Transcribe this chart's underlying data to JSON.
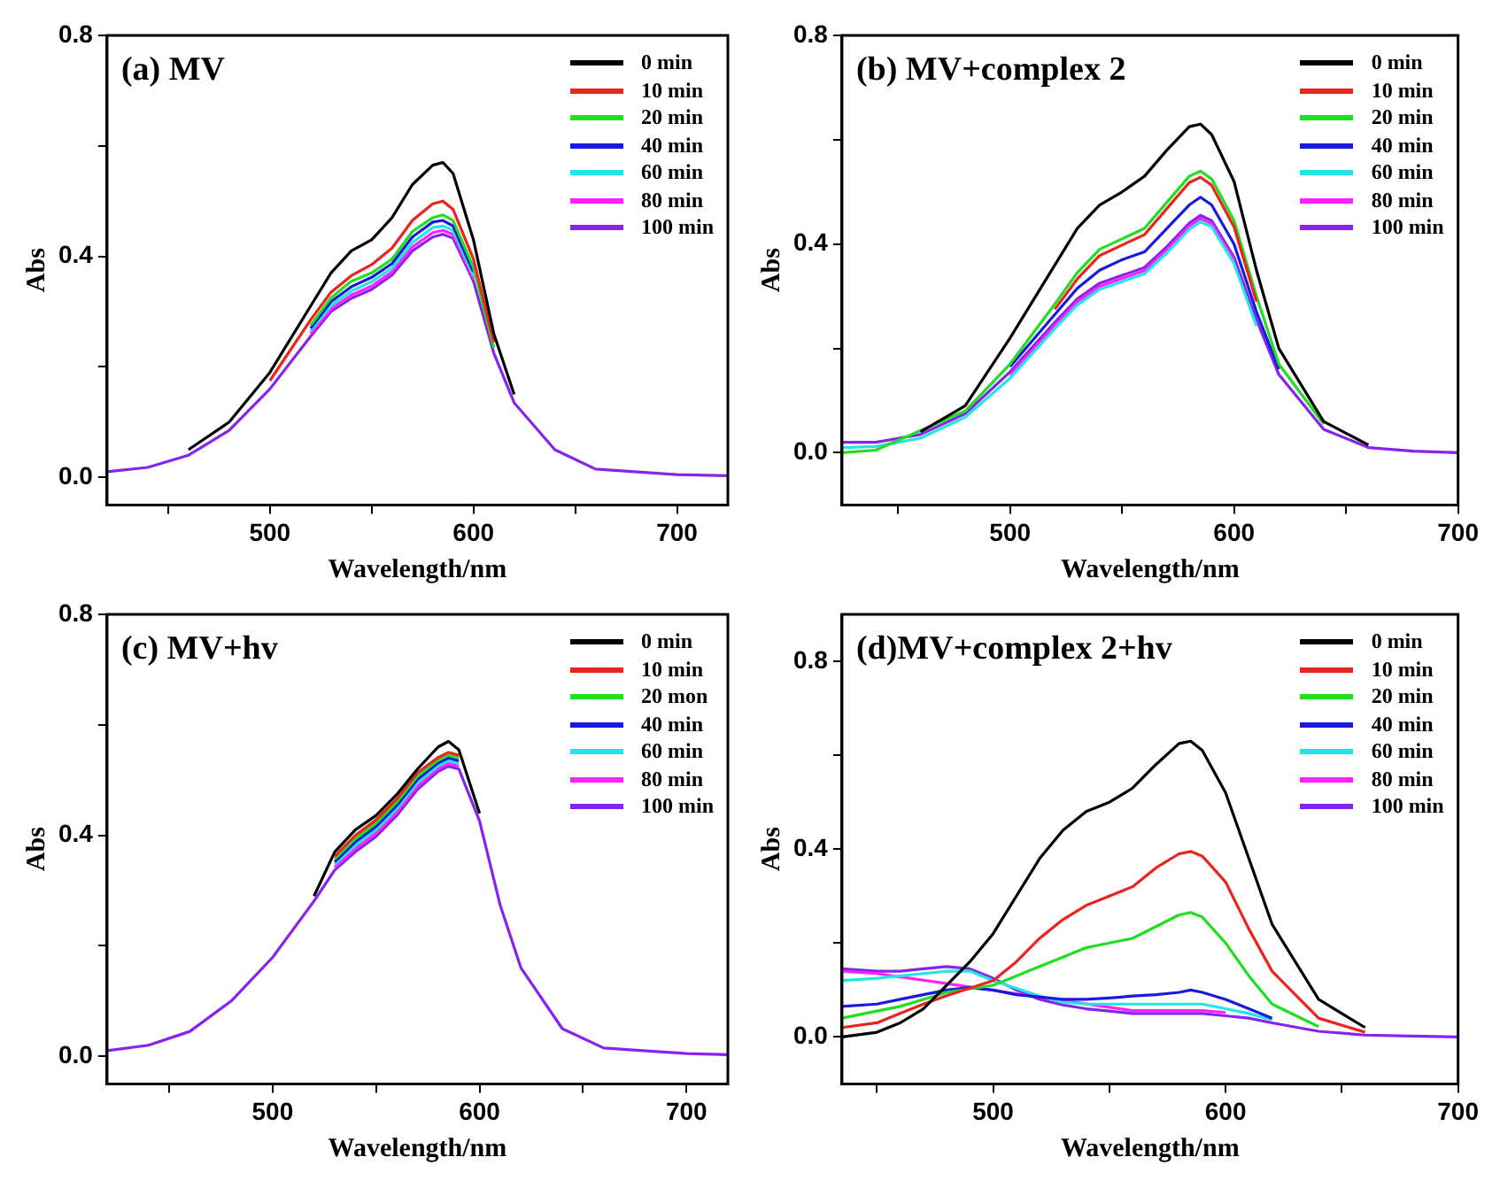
{
  "chart_data": [
    {
      "type": "line",
      "title": "(a) MV",
      "xlabel": "Wavelength/nm",
      "ylabel": "Abs",
      "legend": "top right",
      "xlim": [
        420,
        725
      ],
      "ylim": [
        -0.05,
        0.8
      ],
      "xticks": [
        {
          "value": 450,
          "label": null
        },
        500,
        {
          "value": 550,
          "label": null
        },
        600,
        {
          "value": 650,
          "label": null
        },
        700
      ],
      "yticks": [
        {
          "value": 0,
          "label": "0.0"
        },
        {
          "value": 0.2,
          "label": null
        },
        {
          "value": 0.4,
          "label": "0.4"
        },
        {
          "value": 0.6,
          "label": null
        },
        {
          "value": 0.8,
          "label": "0.8"
        }
      ],
      "x": [
        420,
        440,
        460,
        480,
        500,
        520,
        530,
        540,
        550,
        560,
        570,
        580,
        585,
        590,
        600,
        610,
        620,
        640,
        660,
        700,
        725
      ],
      "series": [
        {
          "name": "0 min",
          "color": "#000000",
          "values": [
            null,
            null,
            0.05,
            0.1,
            0.19,
            0.31,
            0.37,
            0.41,
            0.43,
            0.47,
            0.53,
            0.565,
            0.57,
            0.55,
            0.43,
            0.26,
            0.15,
            null,
            null,
            null,
            null
          ]
        },
        {
          "name": "10 min",
          "color": "#e8251f",
          "values": [
            null,
            null,
            null,
            null,
            0.175,
            0.285,
            0.335,
            0.365,
            0.385,
            0.415,
            0.465,
            0.495,
            0.5,
            0.485,
            0.395,
            0.245,
            null,
            null,
            null,
            null,
            null
          ]
        },
        {
          "name": "20 min",
          "color": "#22dd22",
          "values": [
            null,
            null,
            null,
            null,
            null,
            0.275,
            0.325,
            0.355,
            0.37,
            0.395,
            0.445,
            0.47,
            0.475,
            0.465,
            0.38,
            0.235,
            null,
            null,
            null,
            null,
            null
          ]
        },
        {
          "name": "40 min",
          "color": "#1a1adf",
          "values": [
            null,
            null,
            null,
            null,
            null,
            0.27,
            0.318,
            0.345,
            0.362,
            0.387,
            0.435,
            0.462,
            0.465,
            0.455,
            0.372,
            null,
            null,
            null,
            null,
            null,
            null
          ]
        },
        {
          "name": "60 min",
          "color": "#22e6e6",
          "values": [
            null,
            null,
            null,
            null,
            null,
            0.265,
            0.311,
            0.337,
            0.354,
            0.379,
            0.425,
            0.452,
            0.455,
            0.447,
            0.365,
            null,
            null,
            null,
            null,
            null,
            null
          ]
        },
        {
          "name": "80 min",
          "color": "#ff22ff",
          "values": [
            null,
            null,
            null,
            null,
            null,
            0.26,
            0.305,
            0.33,
            0.346,
            0.372,
            0.417,
            0.443,
            0.447,
            0.44,
            0.36,
            null,
            null,
            null,
            null,
            null,
            null
          ]
        },
        {
          "name": "100 min",
          "color": "#8822ee",
          "values": [
            0.01,
            0.018,
            0.04,
            0.085,
            0.16,
            0.255,
            0.3,
            0.324,
            0.34,
            0.366,
            0.41,
            0.435,
            0.44,
            0.433,
            0.355,
            0.225,
            0.135,
            0.05,
            0.015,
            0.005,
            0.003
          ]
        }
      ]
    },
    {
      "type": "line",
      "title": "(b) MV+complex 2",
      "xlabel": "Wavelength/nm",
      "ylabel": "Abs",
      "legend": "top right",
      "xlim": [
        425,
        700
      ],
      "ylim": [
        -0.1,
        0.8
      ],
      "xticks": [
        {
          "value": 450,
          "label": null
        },
        500,
        {
          "value": 550,
          "label": null
        },
        600,
        {
          "value": 650,
          "label": null
        },
        700
      ],
      "yticks": [
        {
          "value": 0,
          "label": "0.0"
        },
        {
          "value": 0.2,
          "label": null
        },
        {
          "value": 0.4,
          "label": "0.4"
        },
        {
          "value": 0.6,
          "label": null
        },
        {
          "value": 0.8,
          "label": "0.8"
        }
      ],
      "x": [
        425,
        440,
        460,
        480,
        500,
        520,
        530,
        540,
        550,
        560,
        570,
        580,
        585,
        590,
        600,
        610,
        620,
        640,
        660,
        680,
        700
      ],
      "series": [
        {
          "name": "0 min",
          "color": "#000000",
          "values": [
            null,
            null,
            0.04,
            0.09,
            0.22,
            0.36,
            0.43,
            0.475,
            0.5,
            0.53,
            0.58,
            0.625,
            0.63,
            0.61,
            0.52,
            0.35,
            0.2,
            0.06,
            0.015,
            null,
            null
          ]
        },
        {
          "name": "10 min",
          "color": "#e8251f",
          "values": [
            null,
            null,
            null,
            null,
            null,
            0.275,
            0.333,
            0.378,
            0.398,
            0.418,
            0.468,
            0.518,
            0.528,
            0.513,
            0.433,
            0.29,
            null,
            null,
            null,
            null,
            null
          ]
        },
        {
          "name": "20 min",
          "color": "#22dd22",
          "values": [
            0,
            0.005,
            null,
            0.08,
            0.17,
            0.285,
            0.345,
            0.39,
            0.41,
            0.43,
            0.48,
            0.53,
            0.54,
            0.525,
            0.445,
            0.3,
            0.17,
            0.055,
            null,
            null,
            null
          ]
        },
        {
          "name": "40 min",
          "color": "#1a1adf",
          "values": [
            null,
            null,
            null,
            null,
            0.165,
            0.265,
            0.315,
            0.35,
            0.37,
            0.385,
            0.43,
            0.475,
            0.49,
            0.475,
            0.4,
            0.27,
            0.16,
            null,
            null,
            null,
            null
          ]
        },
        {
          "name": "60 min",
          "color": "#22e6e6",
          "values": [
            0.01,
            0.012,
            0.028,
            0.068,
            0.143,
            0.238,
            0.283,
            0.313,
            0.328,
            0.343,
            0.383,
            0.428,
            0.443,
            0.433,
            0.363,
            0.243,
            null,
            null,
            null,
            null,
            null
          ]
        },
        {
          "name": "80 min",
          "color": "#ff22ff",
          "values": [
            null,
            null,
            null,
            null,
            0.149,
            0.244,
            0.289,
            0.319,
            0.334,
            0.349,
            0.389,
            0.434,
            0.449,
            0.439,
            0.369,
            null,
            null,
            null,
            null,
            null,
            null
          ]
        },
        {
          "name": "100 min",
          "color": "#8822ee",
          "values": [
            0.02,
            0.02,
            0.035,
            0.075,
            0.155,
            0.25,
            0.295,
            0.325,
            0.34,
            0.355,
            0.395,
            0.44,
            0.455,
            0.445,
            0.375,
            0.255,
            0.15,
            0.045,
            0.01,
            0.003,
            0
          ]
        }
      ]
    },
    {
      "type": "line",
      "title": "(c) MV+hv",
      "xlabel": "Wavelength/nm",
      "ylabel": "Abs",
      "legend": "top right",
      "xlim": [
        420,
        720
      ],
      "ylim": [
        -0.05,
        0.8
      ],
      "xticks": [
        {
          "value": 450,
          "label": null
        },
        500,
        {
          "value": 550,
          "label": null
        },
        600,
        {
          "value": 650,
          "label": null
        },
        700
      ],
      "yticks": [
        {
          "value": 0,
          "label": "0.0"
        },
        {
          "value": 0.2,
          "label": null
        },
        {
          "value": 0.4,
          "label": "0.4"
        },
        {
          "value": 0.6,
          "label": null
        },
        {
          "value": 0.8,
          "label": "0.8"
        }
      ],
      "x": [
        420,
        440,
        460,
        480,
        500,
        520,
        530,
        540,
        550,
        560,
        570,
        580,
        585,
        590,
        600,
        610,
        620,
        640,
        660,
        700,
        720
      ],
      "series": [
        {
          "name": "0 min",
          "color": "#000000",
          "values": [
            null,
            null,
            null,
            null,
            null,
            0.29,
            0.37,
            0.41,
            0.436,
            0.474,
            0.52,
            0.56,
            0.57,
            0.555,
            0.44,
            null,
            null,
            null,
            null,
            null,
            null
          ]
        },
        {
          "name": "10 min",
          "color": "#e8251f",
          "values": [
            null,
            null,
            null,
            null,
            null,
            null,
            0.362,
            0.4,
            0.428,
            0.466,
            0.513,
            0.541,
            0.55,
            0.545,
            null,
            null,
            null,
            null,
            null,
            null,
            null
          ]
        },
        {
          "name": "20 mon",
          "color": "#22dd22",
          "values": [
            null,
            null,
            null,
            null,
            null,
            null,
            0.357,
            0.394,
            0.422,
            0.46,
            0.507,
            0.536,
            0.545,
            0.54,
            null,
            null,
            null,
            null,
            null,
            null,
            null
          ]
        },
        {
          "name": "40 min",
          "color": "#1a1adf",
          "values": [
            null,
            null,
            null,
            null,
            null,
            null,
            0.352,
            0.388,
            0.416,
            0.454,
            0.501,
            0.531,
            0.54,
            0.535,
            null,
            null,
            null,
            null,
            null,
            null,
            null
          ]
        },
        {
          "name": "60 min",
          "color": "#22e6e6",
          "values": [
            null,
            null,
            null,
            null,
            null,
            null,
            0.347,
            0.382,
            0.41,
            0.448,
            0.495,
            0.526,
            0.535,
            0.53,
            null,
            null,
            null,
            null,
            null,
            null,
            null
          ]
        },
        {
          "name": "80 min",
          "color": "#ff22ff",
          "values": [
            null,
            null,
            null,
            null,
            null,
            null,
            0.342,
            0.376,
            0.404,
            0.442,
            0.489,
            0.521,
            0.53,
            0.525,
            null,
            null,
            null,
            null,
            null,
            null,
            null
          ]
        },
        {
          "name": "100 min",
          "color": "#8822ee",
          "values": [
            0.01,
            0.02,
            0.045,
            0.1,
            0.179,
            0.281,
            0.337,
            0.37,
            0.398,
            0.436,
            0.483,
            0.516,
            0.525,
            0.52,
            0.426,
            0.273,
            0.16,
            0.05,
            0.015,
            0.005,
            0.003
          ]
        }
      ]
    },
    {
      "type": "line",
      "title": "(d)MV+complex 2+hv",
      "xlabel": "Wavelength/nm",
      "ylabel": "Abs",
      "legend": "top right",
      "xlim": [
        435,
        700
      ],
      "ylim": [
        -0.1,
        0.9
      ],
      "xticks": [
        {
          "value": 450,
          "label": null
        },
        500,
        {
          "value": 550,
          "label": null
        },
        600,
        {
          "value": 650,
          "label": null
        },
        700
      ],
      "yticks": [
        {
          "value": 0,
          "label": "0.0"
        },
        {
          "value": 0.2,
          "label": null
        },
        {
          "value": 0.4,
          "label": "0.4"
        },
        {
          "value": 0.6,
          "label": null
        },
        {
          "value": 0.8,
          "label": "0.8"
        }
      ],
      "x": [
        435,
        450,
        460,
        470,
        480,
        490,
        500,
        510,
        520,
        530,
        540,
        550,
        560,
        570,
        580,
        585,
        590,
        600,
        610,
        620,
        640,
        660,
        680,
        700
      ],
      "series": [
        {
          "name": "0 min",
          "color": "#000000",
          "values": [
            0,
            0.01,
            0.03,
            0.06,
            null,
            0.16,
            0.22,
            0.3,
            0.38,
            0.44,
            0.48,
            0.5,
            0.53,
            0.58,
            0.625,
            0.63,
            0.61,
            0.52,
            0.38,
            0.24,
            0.08,
            0.02,
            null,
            null
          ]
        },
        {
          "name": "10 min",
          "color": "#e8251f",
          "values": [
            0.02,
            0.03,
            0.05,
            0.07,
            0.088,
            null,
            0.12,
            0.16,
            0.21,
            0.25,
            0.28,
            0.3,
            0.32,
            0.36,
            0.39,
            0.395,
            0.385,
            0.33,
            0.23,
            0.14,
            0.04,
            0.01,
            null,
            null
          ]
        },
        {
          "name": "20 min",
          "color": "#22dd22",
          "values": [
            0.04,
            0.055,
            0.065,
            0.08,
            0.095,
            null,
            0.11,
            0.13,
            0.15,
            0.17,
            0.19,
            0.2,
            0.21,
            0.235,
            0.26,
            0.265,
            0.255,
            0.2,
            0.13,
            0.07,
            0.022,
            null,
            null,
            null
          ]
        },
        {
          "name": "40 min",
          "color": "#1a1adf",
          "values": [
            0.065,
            0.07,
            0.08,
            0.09,
            0.1,
            0.105,
            0.1,
            0.09,
            null,
            0.08,
            0.08,
            0.083,
            0.087,
            0.09,
            0.095,
            0.1,
            0.095,
            0.08,
            0.06,
            0.04,
            null,
            null,
            null,
            null
          ]
        },
        {
          "name": "60 min",
          "color": "#22e6e6",
          "values": [
            0.12,
            0.125,
            0.13,
            0.135,
            0.14,
            0.14,
            0.12,
            null,
            0.087,
            0.074,
            0.07,
            0.07,
            0.07,
            0.07,
            0.07,
            0.07,
            0.07,
            0.06,
            0.05,
            0.036,
            null,
            null,
            null,
            null
          ]
        },
        {
          "name": "80 min",
          "color": "#ff22ff",
          "values": [
            0.14,
            0.135,
            null,
            null,
            null,
            null,
            null,
            null,
            null,
            null,
            null,
            null,
            0.056,
            0.056,
            0.056,
            0.056,
            0.056,
            0.052,
            null,
            null,
            null,
            null,
            null,
            null
          ]
        },
        {
          "name": "100 min",
          "color": "#8822ee",
          "values": [
            0.145,
            0.14,
            0.14,
            0.145,
            0.15,
            0.145,
            0.125,
            0.1,
            0.08,
            0.068,
            0.06,
            0.055,
            0.05,
            0.05,
            0.05,
            0.05,
            0.05,
            0.045,
            0.04,
            0.03,
            0.012,
            0.004,
            0.002,
            0
          ]
        }
      ]
    }
  ]
}
